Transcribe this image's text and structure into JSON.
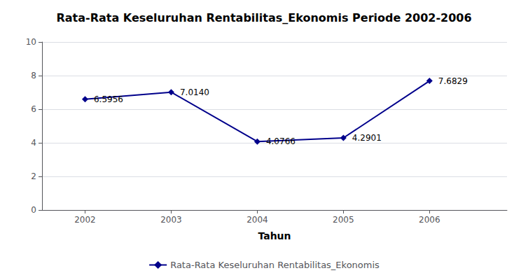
{
  "chart_data": {
    "type": "line",
    "title": "Rata-Rata Keseluruhan Rentabilitas_Ekonomis Periode 2002-2006",
    "xlabel": "Tahun",
    "x": [
      2002,
      2003,
      2004,
      2005,
      2006
    ],
    "series": [
      {
        "name": "Rata-Rata Keseluruhan Rentabilitas_Ekonomis",
        "color": "#00008B",
        "marker": "diamond",
        "values": [
          6.5956,
          7.014,
          4.0766,
          4.2901,
          7.6829
        ],
        "value_labels": [
          "6.5956",
          "7.0140",
          "4.0766",
          "4.2901",
          "7.6829"
        ]
      }
    ],
    "xlim": [
      2001.5,
      2006.9
    ],
    "xticks": [
      2002,
      2003,
      2004,
      2005,
      2006
    ],
    "ylim": [
      0,
      10
    ],
    "yticks": [
      0,
      2,
      4,
      6,
      8,
      10
    ],
    "grid": true,
    "legend": "bottom",
    "data_labels": true
  }
}
